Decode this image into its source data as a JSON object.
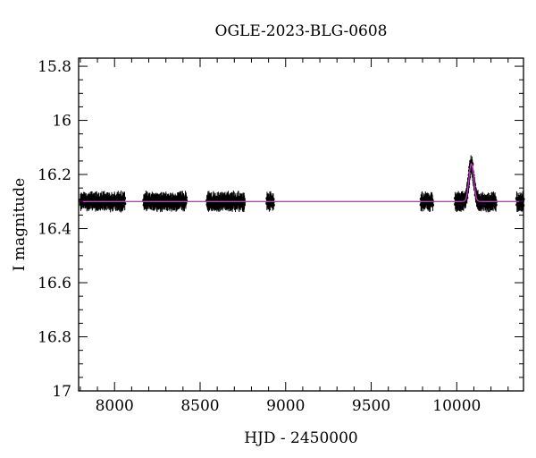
{
  "chart_data": {
    "type": "scatter",
    "title": "OGLE-2023-BLG-0608",
    "xlabel": "HJD - 2450000",
    "ylabel": "I magnitude",
    "xlim": [
      7790,
      10390
    ],
    "ylim": [
      15.77,
      17.0
    ],
    "y_inverted": true,
    "x_ticks": [
      8000,
      8500,
      9000,
      9500,
      10000
    ],
    "x_tick_labels": [
      "8000",
      "8500",
      "9000",
      "9500",
      "10000"
    ],
    "y_ticks": [
      15.8,
      16,
      16.2,
      16.4,
      16.6,
      16.8,
      17
    ],
    "y_tick_labels": [
      "15.8",
      "16",
      "16.2",
      "16.4",
      "16.6",
      "16.8",
      "17"
    ],
    "baseline": 16.3,
    "model_color": "#cc33cc",
    "point_color": "#000000",
    "observing_seasons": [
      {
        "start": 7800,
        "end": 8060,
        "mag": 16.3
      },
      {
        "start": 8170,
        "end": 8420,
        "mag": 16.3
      },
      {
        "start": 8540,
        "end": 8760,
        "mag": 16.3
      },
      {
        "start": 8890,
        "end": 8930,
        "mag": 16.3
      },
      {
        "start": 9790,
        "end": 9860,
        "mag": 16.3
      },
      {
        "start": 9990,
        "end": 10230,
        "mag": 16.3
      },
      {
        "start": 10350,
        "end": 10390,
        "mag": 16.3
      }
    ],
    "event": {
      "peak_time": 10085,
      "peak_mag": 16.16,
      "baseline_mag": 16.3,
      "width_days": 14
    },
    "grid": false,
    "legend": "none"
  }
}
